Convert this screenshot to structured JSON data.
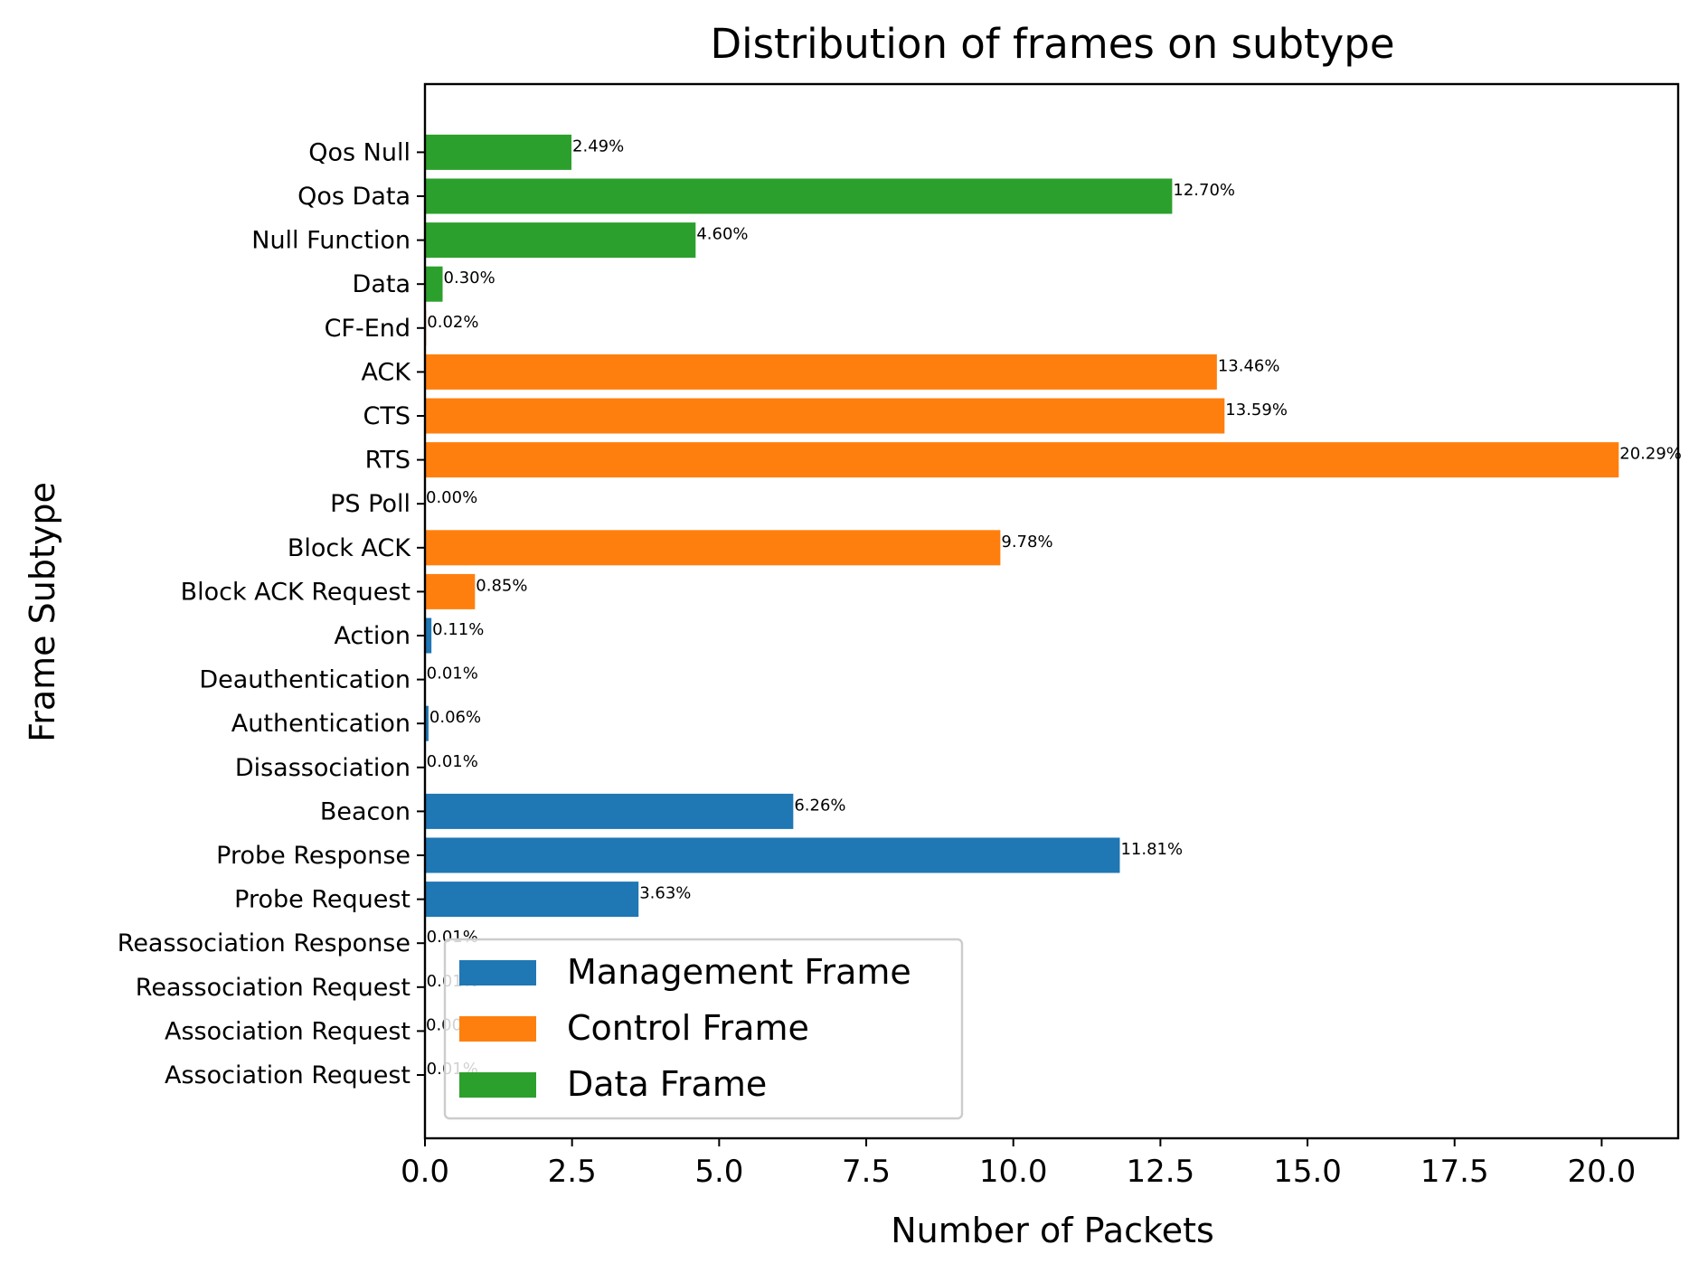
{
  "chart_data": {
    "type": "bar",
    "orientation": "horizontal",
    "title": "Distribution of frames on subtype",
    "xlabel": "Number of Packets",
    "ylabel": "Frame Subtype",
    "xlim": [
      0,
      21.3
    ],
    "xticks": [
      "0.0",
      "2.5",
      "5.0",
      "7.5",
      "10.0",
      "12.5",
      "15.0",
      "17.5",
      "20.0"
    ],
    "xtick_values": [
      0,
      2.5,
      5,
      7.5,
      10,
      12.5,
      15,
      17.5,
      20
    ],
    "grid": false,
    "legend": {
      "placement": "lower-left",
      "entries": [
        {
          "name": "Management Frame",
          "color": "#1f77b4"
        },
        {
          "name": "Control Frame",
          "color": "#ff7f0e"
        },
        {
          "name": "Data Frame",
          "color": "#2ca02c"
        }
      ]
    },
    "bars": [
      {
        "category": "Association Request",
        "value": 0.01,
        "label": "0.01%",
        "series": "Management Frame"
      },
      {
        "category": "Association Request",
        "value": 0.0,
        "label": "0.00%",
        "series": "Management Frame"
      },
      {
        "category": "Reassociation Request",
        "value": 0.01,
        "label": "0.01%",
        "series": "Management Frame"
      },
      {
        "category": "Reassociation Response",
        "value": 0.01,
        "label": "0.01%",
        "series": "Management Frame"
      },
      {
        "category": "Probe Request",
        "value": 3.63,
        "label": "3.63%",
        "series": "Management Frame"
      },
      {
        "category": "Probe Response",
        "value": 11.81,
        "label": "11.81%",
        "series": "Management Frame"
      },
      {
        "category": "Beacon",
        "value": 6.26,
        "label": "6.26%",
        "series": "Management Frame"
      },
      {
        "category": "Disassociation",
        "value": 0.01,
        "label": "0.01%",
        "series": "Management Frame"
      },
      {
        "category": "Authentication",
        "value": 0.06,
        "label": "0.06%",
        "series": "Management Frame"
      },
      {
        "category": "Deauthentication",
        "value": 0.01,
        "label": "0.01%",
        "series": "Management Frame"
      },
      {
        "category": "Action",
        "value": 0.11,
        "label": "0.11%",
        "series": "Management Frame"
      },
      {
        "category": "Block ACK Request",
        "value": 0.85,
        "label": "0.85%",
        "series": "Control Frame"
      },
      {
        "category": "Block ACK",
        "value": 9.78,
        "label": "9.78%",
        "series": "Control Frame"
      },
      {
        "category": "PS Poll",
        "value": 0.0,
        "label": "0.00%",
        "series": "Control Frame"
      },
      {
        "category": "RTS",
        "value": 20.29,
        "label": "20.29%",
        "series": "Control Frame"
      },
      {
        "category": "CTS",
        "value": 13.59,
        "label": "13.59%",
        "series": "Control Frame"
      },
      {
        "category": "ACK",
        "value": 13.46,
        "label": "13.46%",
        "series": "Control Frame"
      },
      {
        "category": "CF-End",
        "value": 0.02,
        "label": "0.02%",
        "series": "Control Frame"
      },
      {
        "category": "Data",
        "value": 0.3,
        "label": "0.30%",
        "series": "Data Frame"
      },
      {
        "category": "Null Function",
        "value": 4.6,
        "label": "4.60%",
        "series": "Data Frame"
      },
      {
        "category": "Qos Data",
        "value": 12.7,
        "label": "12.70%",
        "series": "Data Frame"
      },
      {
        "category": "Qos Null",
        "value": 2.49,
        "label": "2.49%",
        "series": "Data Frame"
      }
    ]
  }
}
